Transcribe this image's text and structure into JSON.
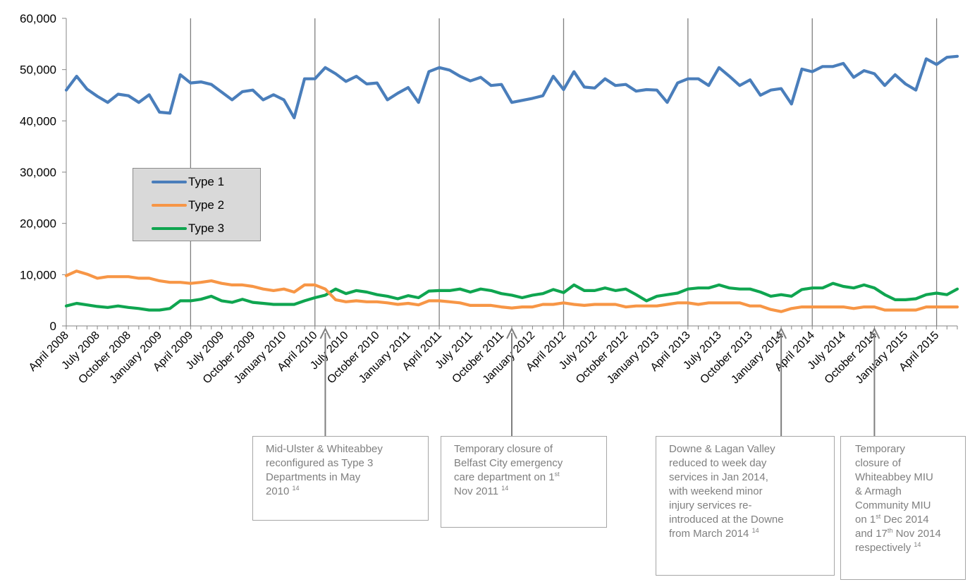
{
  "chart_data": {
    "type": "line",
    "yticks": [
      "0",
      "10,000",
      "20,000",
      "30,000",
      "40,000",
      "50,000",
      "60,000"
    ],
    "ylim": [
      0,
      60000
    ],
    "xtick_labels": [
      "April 2008",
      "July 2008",
      "October 2008",
      "January 2009",
      "April 2009",
      "July 2009",
      "October 2009",
      "January 2010",
      "April 2010",
      "July 2010",
      "October 2010",
      "January 2011",
      "April 2011",
      "July 2011",
      "October 2011",
      "January 2012",
      "April 2012",
      "July 2012",
      "October 2012",
      "January 2013",
      "April 2013",
      "July 2013",
      "October 2013",
      "January 2014",
      "April 2014",
      "July 2014",
      "October 2014",
      "January 2015",
      "April 2015"
    ],
    "x_start": "April 2008",
    "x_end": "June 2015",
    "legend_position": "left",
    "series": [
      {
        "name": "Type 1",
        "color": "#4a7ebb",
        "values": [
          46000,
          48700,
          46200,
          44800,
          43600,
          45200,
          44900,
          43600,
          45100,
          41700,
          41500,
          49000,
          47400,
          47600,
          47100,
          45600,
          44100,
          45700,
          46000,
          44100,
          45100,
          44100,
          40600,
          48200,
          48200,
          50400,
          49200,
          47700,
          48700,
          47200,
          47400,
          44100,
          45400,
          46500,
          43600,
          49600,
          50400,
          49900,
          48700,
          47800,
          48500,
          46900,
          47100,
          43600,
          44000,
          44400,
          44900,
          48700,
          46100,
          49600,
          46600,
          46400,
          48200,
          46900,
          47100,
          45800,
          46100,
          46000,
          43600,
          47400,
          48200,
          48200,
          46900,
          50400,
          48700,
          46900,
          48000,
          45000,
          46000,
          46300,
          43300,
          50100,
          49600,
          50600,
          50600,
          51200,
          48500,
          49800,
          49200,
          46900,
          49000,
          47200,
          46000,
          52100,
          51000,
          52400,
          52600
        ]
      },
      {
        "name": "Type 2",
        "color": "#f79646",
        "values": [
          9800,
          10700,
          10100,
          9300,
          9600,
          9600,
          9600,
          9300,
          9300,
          8800,
          8500,
          8500,
          8300,
          8500,
          8800,
          8300,
          8000,
          8000,
          7700,
          7200,
          6900,
          7200,
          6600,
          8000,
          8000,
          7200,
          5100,
          4700,
          4900,
          4700,
          4700,
          4500,
          4200,
          4400,
          4100,
          4900,
          4900,
          4700,
          4500,
          4000,
          4000,
          4000,
          3700,
          3500,
          3700,
          3700,
          4200,
          4200,
          4500,
          4200,
          4000,
          4200,
          4200,
          4200,
          3700,
          3900,
          3900,
          3900,
          4200,
          4500,
          4500,
          4200,
          4500,
          4500,
          4500,
          4500,
          3900,
          3900,
          3200,
          2800,
          3400,
          3700,
          3700,
          3700,
          3700,
          3700,
          3400,
          3700,
          3700,
          3100,
          3100,
          3100,
          3100,
          3700,
          3700,
          3700,
          3700
        ]
      },
      {
        "name": "Type 3",
        "color": "#0fa550",
        "values": [
          3900,
          4400,
          4100,
          3800,
          3600,
          3900,
          3600,
          3400,
          3100,
          3100,
          3400,
          4900,
          4900,
          5200,
          5800,
          4900,
          4600,
          5200,
          4600,
          4400,
          4200,
          4200,
          4200,
          4900,
          5500,
          6000,
          7200,
          6300,
          6900,
          6600,
          6100,
          5800,
          5300,
          5900,
          5500,
          6800,
          6900,
          6900,
          7200,
          6600,
          7200,
          6900,
          6300,
          6000,
          5500,
          6000,
          6300,
          7100,
          6500,
          8000,
          6900,
          6900,
          7400,
          6900,
          7200,
          6100,
          4900,
          5800,
          6100,
          6400,
          7200,
          7400,
          7400,
          8000,
          7400,
          7200,
          7200,
          6600,
          5800,
          6100,
          5800,
          7100,
          7400,
          7400,
          8300,
          7700,
          7400,
          8000,
          7400,
          6100,
          5100,
          5100,
          5300,
          6100,
          6400,
          6100,
          7200
        ]
      }
    ]
  },
  "annotations": [
    {
      "lines": [
        "Mid-Ulster & Whiteabbey",
        "reconfigured as Type 3",
        "Departments in May",
        "2010"
      ],
      "footnote": "14"
    },
    {
      "lines": [
        "Temporary closure of",
        "Belfast City emergency",
        "care department on 1|st",
        "Nov 2011"
      ],
      "footnote": "14"
    },
    {
      "lines": [
        "Downe & Lagan Valley",
        "reduced to week day",
        "services in Jan 2014,",
        "with weekend minor",
        "injury services re-",
        "introduced at the Downe",
        "from March 2014"
      ],
      "footnote": "14"
    },
    {
      "lines": [
        "Temporary",
        "closure of",
        "Whiteabbey MIU",
        "& Armagh",
        "Community MIU",
        "on 1|st Dec 2014",
        "and 17|th Nov 2014",
        "respectively"
      ],
      "footnote": "14"
    }
  ]
}
